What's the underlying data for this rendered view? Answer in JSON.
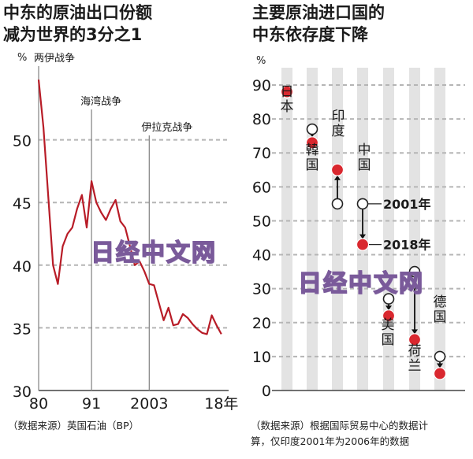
{
  "left": {
    "title_line1": "中东的原油出口份额",
    "title_line2": "减为世界的3分之1",
    "unit": "%",
    "source": "（数据来源）英国石油（BP）"
  },
  "right": {
    "title_line1": "主要原油进口国的",
    "title_line2": "中东依存度下降",
    "unit": "%",
    "source_line1": "（数据来源）根据国际贸易中心的数据计",
    "source_line2": "算，仅印度2001年为2006年的数据"
  },
  "watermark": "日经中文网",
  "colors": {
    "line": "#b81c27",
    "dot_2018": "#d9282f",
    "grid": "#b5b5b5",
    "band": "#e3e3e3"
  },
  "chart_data": [
    {
      "type": "line",
      "title": "中东的原油出口份额减为世界的3分之1",
      "unit": "%",
      "ylim": [
        30,
        55
      ],
      "yticks": [
        30,
        35,
        40,
        45,
        50
      ],
      "xlim": [
        1980,
        2019.5
      ],
      "xticks": [
        {
          "x": 1980,
          "label": "80"
        },
        {
          "x": 1991,
          "label": "91"
        },
        {
          "x": 2003,
          "label": "2003"
        },
        {
          "x": 2018,
          "label": "18年"
        }
      ],
      "annotations": [
        {
          "x": 1980,
          "label": "两伊战争"
        },
        {
          "x": 1991,
          "label": "海湾战争"
        },
        {
          "x": 2003,
          "label": "伊拉克战争"
        }
      ],
      "series": [
        {
          "x": [
            1980,
            1981,
            1982,
            1983,
            1984,
            1985,
            1986,
            1987,
            1988,
            1989,
            1990,
            1991,
            1992,
            1993,
            1994,
            1995,
            1996,
            1997,
            1998,
            1999,
            2000,
            2001,
            2002,
            2003,
            2004,
            2005,
            2006,
            2007,
            2008,
            2009,
            2010,
            2011,
            2012,
            2013,
            2014,
            2015,
            2016,
            2017,
            2018
          ],
          "y": [
            54.8,
            51.0,
            45.5,
            40.0,
            38.5,
            41.5,
            42.5,
            43.0,
            44.5,
            45.6,
            43.0,
            46.7,
            45.0,
            44.2,
            43.6,
            44.5,
            45.2,
            43.5,
            43.0,
            41.5,
            40.0,
            40.3,
            39.5,
            38.5,
            38.4,
            37.0,
            35.6,
            36.6,
            35.2,
            35.3,
            36.1,
            35.8,
            35.3,
            34.9,
            34.6,
            34.5,
            36.0,
            35.2,
            34.5
          ]
        }
      ]
    },
    {
      "type": "scatter",
      "title": "主要原油进口国的中东依存度下降",
      "unit": "%",
      "ylim": [
        0,
        90
      ],
      "yticks": [
        0,
        10,
        20,
        30,
        40,
        50,
        60,
        70,
        80,
        90
      ],
      "legend": [
        {
          "name": "2001年",
          "marker": "open circle"
        },
        {
          "name": "2018年",
          "marker": "filled red dot"
        }
      ],
      "categories": [
        "日本",
        "韓国",
        "印度",
        "中国",
        "美国",
        "荷兰",
        "德国"
      ],
      "series": [
        {
          "name": "2001年",
          "values": [
            88,
            77,
            55,
            55,
            27,
            35,
            10
          ]
        },
        {
          "name": "2018年",
          "values": [
            88,
            73,
            65,
            43,
            22,
            15,
            5
          ]
        }
      ]
    }
  ]
}
